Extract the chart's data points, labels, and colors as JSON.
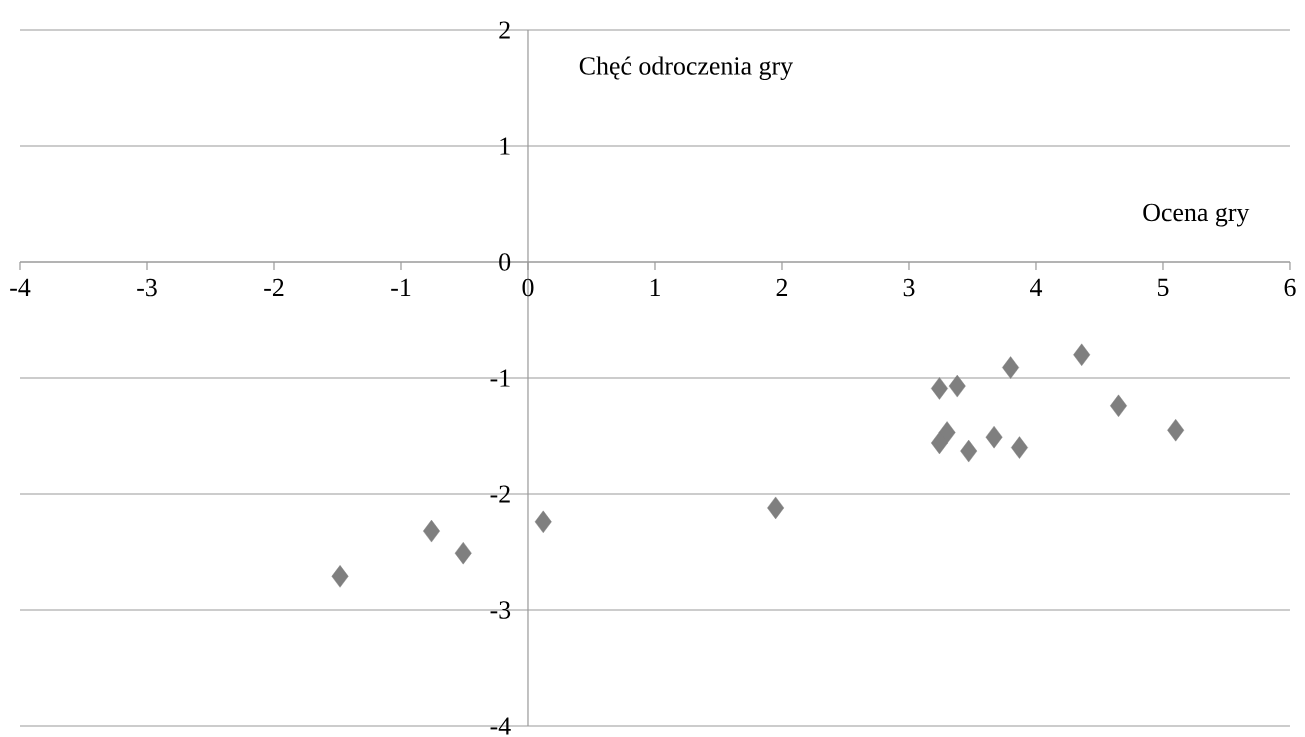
{
  "chart_data": {
    "type": "scatter",
    "xlabel": "Ocena gry",
    "ylabel": "Chęć odroczenia gry",
    "x": [
      -1.48,
      -0.76,
      -0.51,
      0.12,
      1.95,
      3.24,
      3.38,
      3.3,
      3.24,
      3.47,
      3.67,
      3.8,
      3.87,
      4.36,
      4.65,
      5.1
    ],
    "values": [
      -2.71,
      -2.32,
      -2.51,
      -2.24,
      -2.12,
      -1.09,
      -1.07,
      -1.47,
      -1.56,
      -1.63,
      -1.51,
      -0.91,
      -1.6,
      -0.8,
      -1.24,
      -1.45
    ],
    "color": "#7f7f7f",
    "marker": "diamond",
    "xlim": [
      -4,
      6
    ],
    "ylim": [
      -4,
      2
    ],
    "xticks": [
      -4,
      -3,
      -2,
      -1,
      0,
      1,
      2,
      3,
      4,
      5,
      6
    ],
    "yticks": [
      -4,
      -3,
      -2,
      -1,
      0,
      1,
      2
    ],
    "grid": "y"
  }
}
